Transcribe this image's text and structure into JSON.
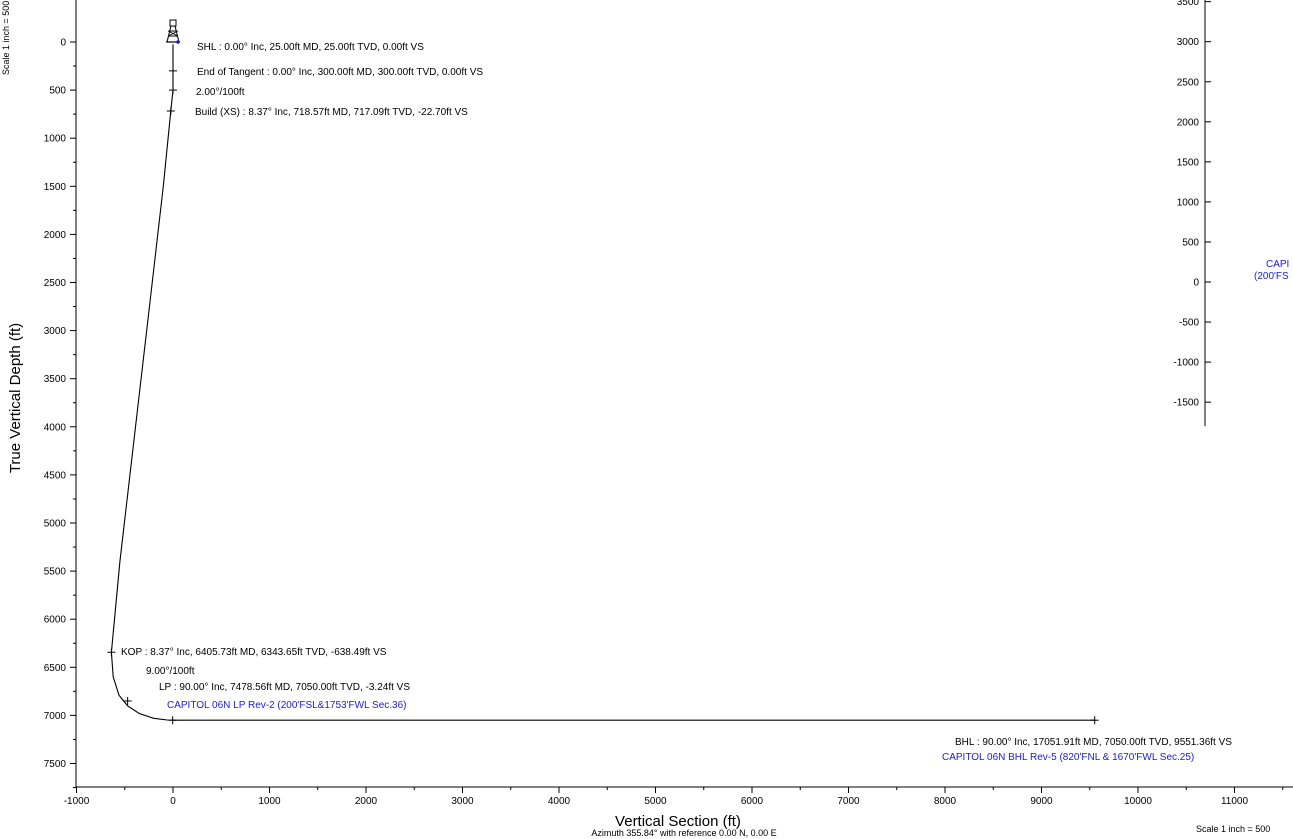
{
  "chart_data": [
    {
      "type": "line",
      "title": "",
      "xlabel": "Vertical Section (ft)",
      "ylabel": "True Vertical Depth (ft)",
      "subtitle": "Azimuth 355.84° with reference 0.00 N, 0.00 E",
      "scale_left": "Scale 1 inch = 500",
      "scale_bottom": "Scale 1 inch = 500",
      "xlim": [
        -1000,
        11500
      ],
      "ylim": [
        7850,
        -350
      ],
      "y_inverted": true,
      "xticks": [
        -1000,
        0,
        1000,
        2000,
        3000,
        4000,
        5000,
        6000,
        7000,
        8000,
        9000,
        10000,
        11000
      ],
      "yticks": [
        0,
        500,
        1000,
        1500,
        2000,
        2500,
        3000,
        3500,
        4000,
        4500,
        5000,
        5500,
        6000,
        6500,
        7000,
        7500
      ],
      "series": [
        {
          "x": [
            0,
            0,
            0,
            -22.7,
            -100,
            -250,
            -400,
            -550,
            -638.49,
            -620,
            -560,
            -470,
            -350,
            -200,
            -60,
            -3.24,
            3000,
            6000,
            9551.36
          ],
          "y": [
            25,
            300,
            500,
            717.09,
            1500,
            2800,
            4100,
            5400,
            6343.65,
            6600,
            6790,
            6900,
            6980,
            7030,
            7048,
            7050,
            7050,
            7050,
            7050
          ]
        }
      ],
      "markers": [
        {
          "x": 0,
          "y": 300
        },
        {
          "x": 0,
          "y": 500
        },
        {
          "x": -22.7,
          "y": 717.09
        },
        {
          "x": -638.49,
          "y": 6343.65
        },
        {
          "x": -470,
          "y": 6850
        },
        {
          "x": -3.24,
          "y": 7050
        },
        {
          "x": 9551.36,
          "y": 7050
        }
      ],
      "annotations": [
        {
          "text": "SHL : 0.00° Inc, 25.00ft MD, 25.00ft TVD, 0.00ft VS",
          "color": "#000000"
        },
        {
          "text": "End of Tangent : 0.00° Inc, 300.00ft MD, 300.00ft TVD, 0.00ft VS",
          "color": "#000000"
        },
        {
          "text": "2.00°/100ft",
          "color": "#000000"
        },
        {
          "text": "Build (XS) : 8.37° Inc, 718.57ft MD, 717.09ft TVD, -22.70ft VS",
          "color": "#000000"
        },
        {
          "text": "KOP : 8.37° Inc, 6405.73ft MD, 6343.65ft TVD, -638.49ft VS",
          "color": "#000000"
        },
        {
          "text": "9.00°/100ft",
          "color": "#000000"
        },
        {
          "text": "LP : 90.00° Inc, 7478.56ft MD, 7050.00ft TVD, -3.24ft VS",
          "color": "#000000"
        },
        {
          "text": "CAPITOL 06N LP Rev-2 (200'FSL&1753'FWL Sec.36)",
          "color": "#1a1adf"
        },
        {
          "text": "BHL : 90.00° Inc, 17051.91ft MD, 7050.00ft TVD, 9551.36ft VS",
          "color": "#000000"
        },
        {
          "text": "CAPITOL 06N BHL Rev-5 (820'FNL & 1670'FWL Sec.25)",
          "color": "#1a1adf"
        }
      ]
    },
    {
      "type": "line",
      "title": "",
      "yticks": [
        3500,
        3000,
        2500,
        2000,
        1500,
        1000,
        500,
        0,
        -500,
        -1000,
        -1500
      ],
      "ylim": [
        3550,
        -1800
      ],
      "partial_labels": [
        "CAPI",
        "(200'FS"
      ],
      "label_color": "#1a1adf"
    }
  ]
}
